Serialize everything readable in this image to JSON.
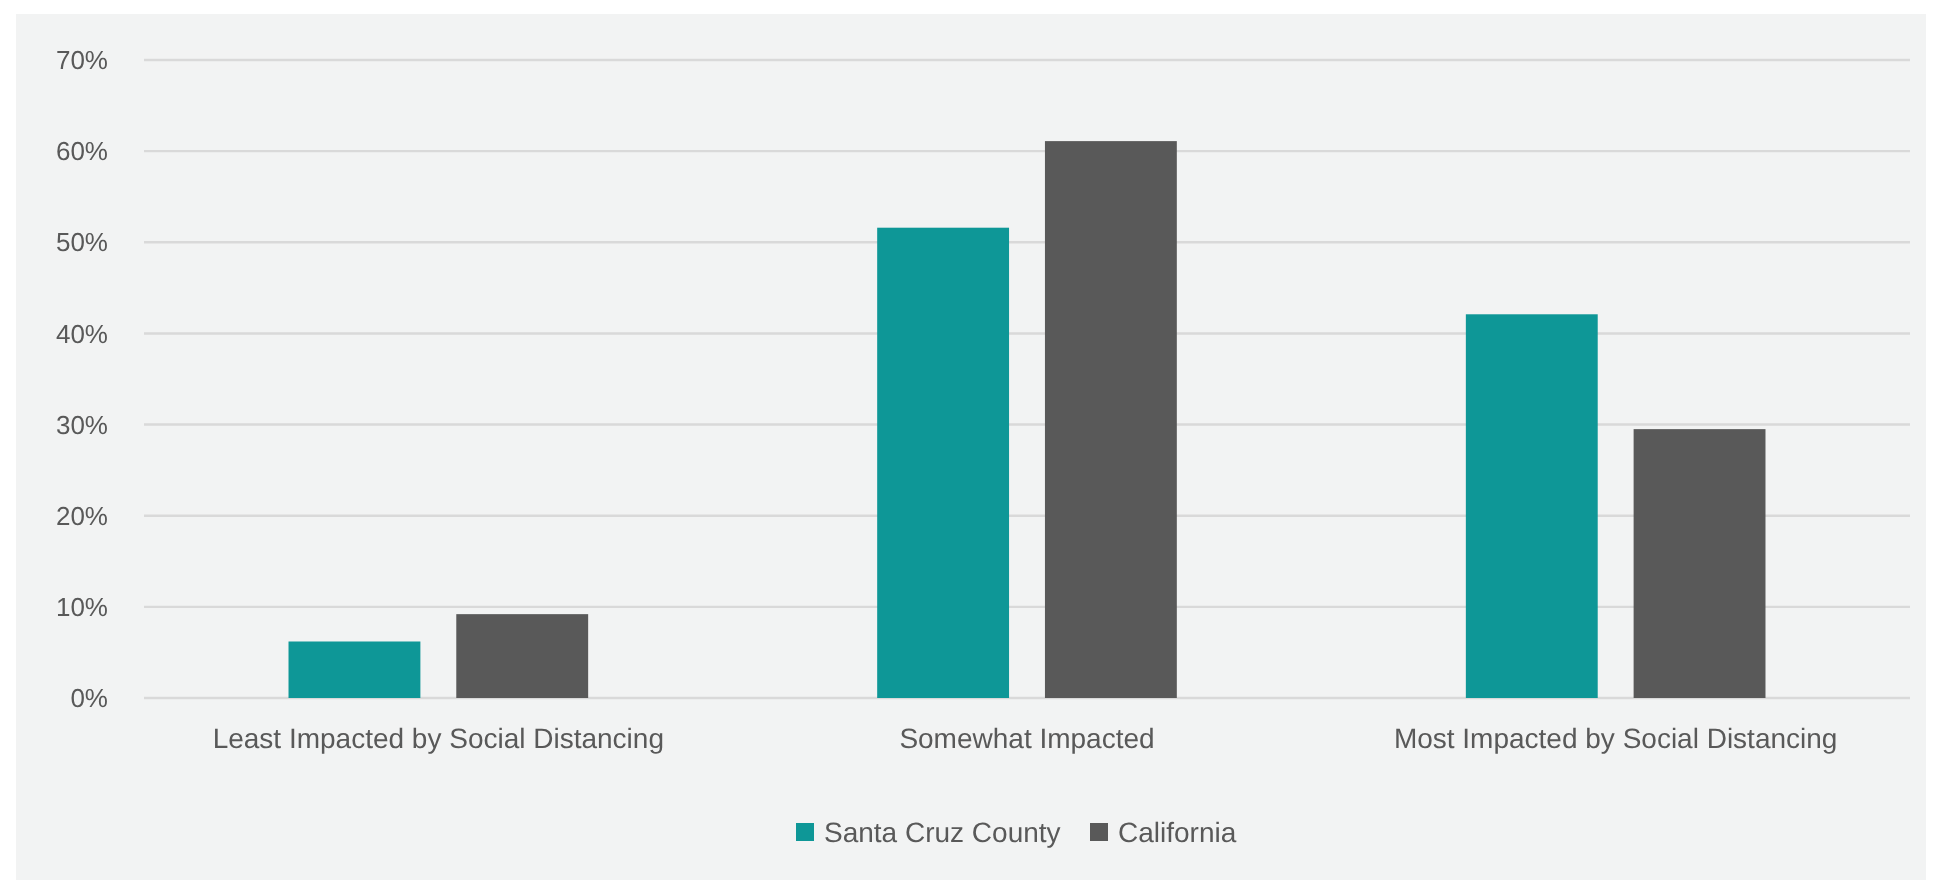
{
  "chart_data": {
    "type": "bar",
    "categories": [
      "Least Impacted by Social Distancing",
      "Somewhat Impacted",
      "Most Impacted by Social Distancing"
    ],
    "series": [
      {
        "name": "Santa Cruz County",
        "color": "#0e9797",
        "values": [
          6.2,
          51.6,
          42.1
        ]
      },
      {
        "name": "California",
        "color": "#595959",
        "values": [
          9.2,
          61.1,
          29.5
        ]
      }
    ],
    "ylim": [
      0,
      70
    ],
    "yticks": [
      {
        "value": 0,
        "label": "0%"
      },
      {
        "value": 10,
        "label": "10%"
      },
      {
        "value": 20,
        "label": "20%"
      },
      {
        "value": 30,
        "label": "30%"
      },
      {
        "value": 40,
        "label": "40%"
      },
      {
        "value": 50,
        "label": "50%"
      },
      {
        "value": 60,
        "label": "60%"
      },
      {
        "value": 70,
        "label": "70%"
      }
    ],
    "grid": true,
    "legend": "bottom"
  }
}
